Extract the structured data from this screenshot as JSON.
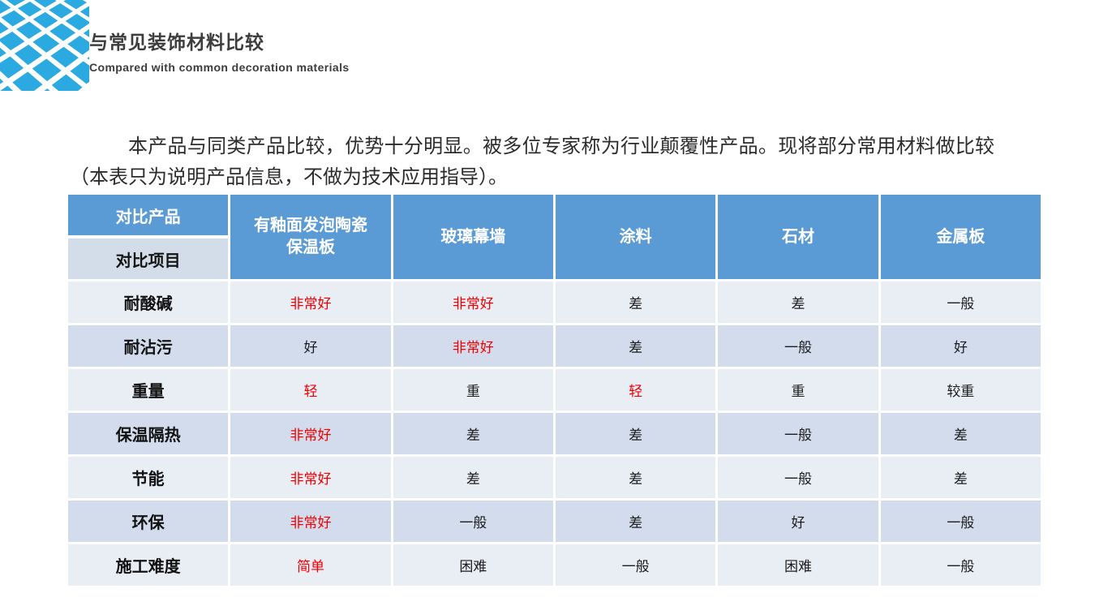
{
  "header": {
    "title": "与常见装饰材料比较",
    "subtitle": "Compared with common decoration materials"
  },
  "intro": "本产品与同类产品比较，优势十分明显。被多位专家称为行业颠覆性产品。现将部分常用材料做比较（本表只为说明产品信息，不做为技术应用指导）。",
  "colors": {
    "logo_blue": "#2ba9e1",
    "header_blue": "#5b9bd5",
    "row_light": "#e9edf4",
    "row_alt": "#d2dcec",
    "label_cell": "#d3dde9",
    "highlight_red": "#f20000"
  },
  "table": {
    "corner": {
      "top": "对比产品",
      "bottom": "对比项目"
    },
    "columns": [
      "有釉面发泡陶瓷保温板",
      "玻璃幕墙",
      "涂料",
      "石材",
      "金属板"
    ],
    "rows": [
      {
        "label": "耐酸碱",
        "values": [
          {
            "t": "非常好",
            "red": true
          },
          {
            "t": "非常好",
            "red": true
          },
          {
            "t": "差",
            "red": false
          },
          {
            "t": "差",
            "red": false
          },
          {
            "t": "一般",
            "red": false
          }
        ]
      },
      {
        "label": "耐沾污",
        "values": [
          {
            "t": "好",
            "red": false
          },
          {
            "t": "非常好",
            "red": true
          },
          {
            "t": "差",
            "red": false
          },
          {
            "t": "一般",
            "red": false
          },
          {
            "t": "好",
            "red": false
          }
        ]
      },
      {
        "label": "重量",
        "values": [
          {
            "t": "轻",
            "red": true
          },
          {
            "t": "重",
            "red": false
          },
          {
            "t": "轻",
            "red": true
          },
          {
            "t": "重",
            "red": false
          },
          {
            "t": "较重",
            "red": false
          }
        ]
      },
      {
        "label": "保温隔热",
        "values": [
          {
            "t": "非常好",
            "red": true
          },
          {
            "t": "差",
            "red": false
          },
          {
            "t": "差",
            "red": false
          },
          {
            "t": "一般",
            "red": false
          },
          {
            "t": "差",
            "red": false
          }
        ]
      },
      {
        "label": "节能",
        "values": [
          {
            "t": "非常好",
            "red": true
          },
          {
            "t": "差",
            "red": false
          },
          {
            "t": "差",
            "red": false
          },
          {
            "t": "一般",
            "red": false
          },
          {
            "t": "差",
            "red": false
          }
        ]
      },
      {
        "label": "环保",
        "values": [
          {
            "t": "非常好",
            "red": true
          },
          {
            "t": "一般",
            "red": false
          },
          {
            "t": "差",
            "red": false
          },
          {
            "t": "好",
            "red": false
          },
          {
            "t": "一般",
            "red": false
          }
        ]
      },
      {
        "label": "施工难度",
        "values": [
          {
            "t": "简单",
            "red": true
          },
          {
            "t": "困难",
            "red": false
          },
          {
            "t": "一般",
            "red": false
          },
          {
            "t": "困难",
            "red": false
          },
          {
            "t": "一般",
            "red": false
          }
        ]
      }
    ]
  }
}
